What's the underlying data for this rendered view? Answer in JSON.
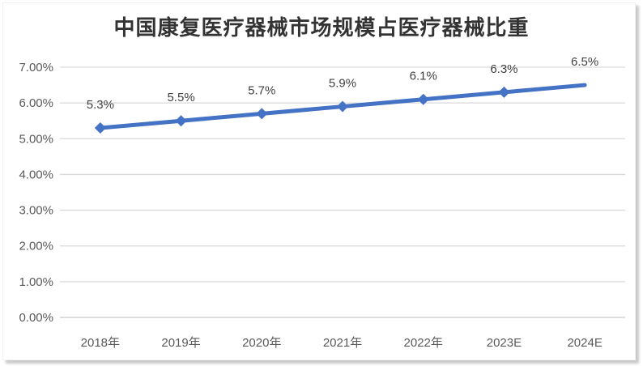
{
  "chart_data": {
    "type": "line",
    "title": "中国康复医疗器械市场规模占医疗器械比重",
    "categories": [
      "2018年",
      "2019年",
      "2020年",
      "2021年",
      "2022年",
      "2023E",
      "2024E"
    ],
    "series": [
      {
        "name": "占医疗器械比重",
        "values": [
          5.3,
          5.5,
          5.7,
          5.9,
          6.1,
          6.3,
          6.5
        ],
        "data_labels": [
          "5.3%",
          "5.5%",
          "5.7%",
          "5.9%",
          "6.1%",
          "6.3%",
          "6.5%"
        ]
      }
    ],
    "y_ticks": [
      "0.00%",
      "1.00%",
      "2.00%",
      "3.00%",
      "4.00%",
      "5.00%",
      "6.00%",
      "7.00%"
    ],
    "ylim": [
      0,
      7
    ],
    "xlabel": "",
    "ylabel": "",
    "grid": "horizontal",
    "legend": "none",
    "marker": "diamond",
    "last_point_has_marker": false,
    "colors": {
      "line": "#4472C4",
      "marker": "#4472C4",
      "gridline": "#D9D9D9",
      "axis_line": "#C9C9C9",
      "tick_label": "#595959",
      "data_label": "#404040",
      "title": "#333333",
      "background": "#FFFFFF",
      "shadow": "#C9C9C9"
    }
  }
}
